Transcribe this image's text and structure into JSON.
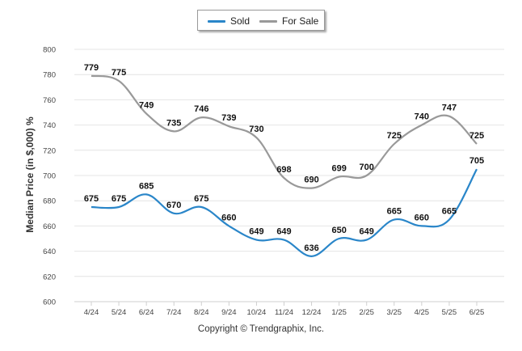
{
  "chart_data": {
    "type": "line",
    "categories": [
      "4/24",
      "5/24",
      "6/24",
      "7/24",
      "8/24",
      "9/24",
      "10/24",
      "11/24",
      "12/24",
      "1/25",
      "2/25",
      "3/25",
      "4/25",
      "5/25",
      "6/25"
    ],
    "series": [
      {
        "name": "Sold",
        "color": "#2a86c9",
        "values": [
          675,
          675,
          685,
          670,
          675,
          660,
          649,
          649,
          636,
          650,
          649,
          665,
          660,
          665,
          705
        ]
      },
      {
        "name": "For Sale",
        "color": "#999999",
        "values": [
          779,
          775,
          749,
          735,
          746,
          739,
          730,
          698,
          690,
          699,
          700,
          725,
          740,
          747,
          725
        ]
      }
    ],
    "ylabel": "Median Price (in $,000) %",
    "ylim": [
      600,
      800
    ],
    "yticks": [
      600,
      620,
      640,
      660,
      680,
      700,
      720,
      740,
      760,
      780,
      800
    ],
    "grid": true,
    "legend": "top-center"
  },
  "footer": {
    "copyright": "Copyright © Trendgraphix, Inc."
  }
}
